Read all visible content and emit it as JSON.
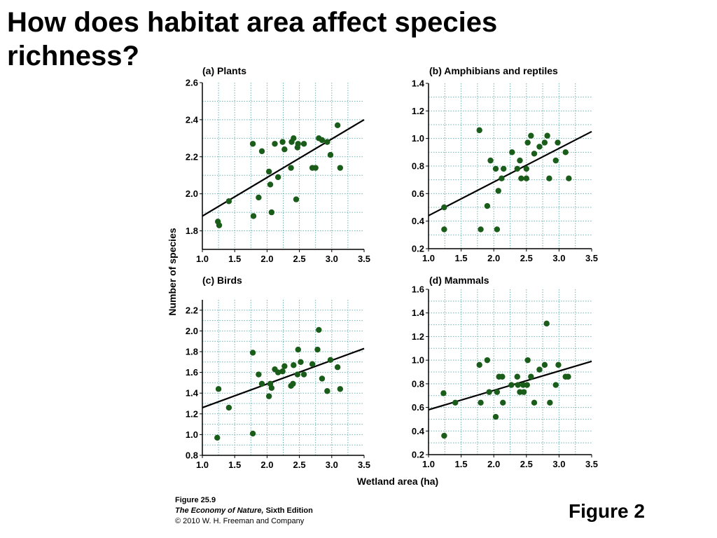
{
  "slide": {
    "title": "How does habitat area affect species richness?",
    "figure_label": "Figure 2"
  },
  "caption": {
    "figure_number": "Figure 25.9",
    "book_title": "The Economy of Nature,",
    "edition": " Sixth Edition",
    "copyright": "© 2010 W. H. Freeman and Company"
  },
  "shared_labels": {
    "ylabel": "Number of species",
    "xlabel": "Wetland area (ha)"
  },
  "colors": {
    "points": "#1a5c1a",
    "grid": "#6fb3b3",
    "regression": "#000000"
  },
  "chart_data": [
    {
      "id": "plants",
      "type": "scatter",
      "title": "(a) Plants",
      "xlim": [
        1.0,
        3.5
      ],
      "ylim": [
        1.7,
        2.6
      ],
      "xticks": [
        1.0,
        1.5,
        2.0,
        2.5,
        3.0,
        3.5
      ],
      "yticks": [
        1.8,
        2.0,
        2.2,
        2.4,
        2.6
      ],
      "tick_decimals": 1,
      "grid": true,
      "regression": [
        [
          1.0,
          1.88
        ],
        [
          3.5,
          2.4
        ]
      ],
      "points": [
        [
          1.24,
          1.85
        ],
        [
          1.26,
          1.83
        ],
        [
          1.41,
          1.96
        ],
        [
          1.79,
          1.88
        ],
        [
          1.78,
          2.27
        ],
        [
          1.87,
          1.98
        ],
        [
          1.92,
          2.23
        ],
        [
          2.03,
          2.12
        ],
        [
          2.05,
          2.05
        ],
        [
          2.07,
          1.9
        ],
        [
          2.12,
          2.27
        ],
        [
          2.17,
          2.09
        ],
        [
          2.24,
          2.28
        ],
        [
          2.27,
          2.24
        ],
        [
          2.37,
          2.14
        ],
        [
          2.38,
          2.28
        ],
        [
          2.41,
          2.3
        ],
        [
          2.45,
          1.97
        ],
        [
          2.47,
          2.25
        ],
        [
          2.48,
          2.27
        ],
        [
          2.57,
          2.27
        ],
        [
          2.7,
          2.14
        ],
        [
          2.75,
          2.14
        ],
        [
          2.8,
          2.3
        ],
        [
          2.85,
          2.29
        ],
        [
          2.93,
          2.28
        ],
        [
          2.98,
          2.21
        ],
        [
          3.09,
          2.37
        ],
        [
          3.13,
          2.14
        ]
      ]
    },
    {
      "id": "amphibians-reptiles",
      "type": "scatter",
      "title": "(b) Amphibians and reptiles",
      "xlim": [
        1.0,
        3.5
      ],
      "ylim": [
        0.2,
        1.4
      ],
      "xticks": [
        1.0,
        1.5,
        2.0,
        2.5,
        3.0,
        3.5
      ],
      "yticks": [
        0.2,
        0.4,
        0.6,
        0.8,
        1.0,
        1.2,
        1.4
      ],
      "tick_decimals": 1,
      "grid": true,
      "regression": [
        [
          1.0,
          0.44
        ],
        [
          3.5,
          1.05
        ]
      ],
      "points": [
        [
          1.24,
          0.5
        ],
        [
          1.24,
          0.34
        ],
        [
          1.78,
          1.06
        ],
        [
          1.8,
          0.34
        ],
        [
          1.9,
          0.51
        ],
        [
          1.95,
          0.84
        ],
        [
          2.03,
          0.78
        ],
        [
          2.05,
          0.34
        ],
        [
          2.07,
          0.62
        ],
        [
          2.12,
          0.71
        ],
        [
          2.15,
          0.78
        ],
        [
          2.28,
          0.9
        ],
        [
          2.36,
          0.78
        ],
        [
          2.4,
          0.84
        ],
        [
          2.42,
          0.71
        ],
        [
          2.5,
          0.78
        ],
        [
          2.5,
          0.71
        ],
        [
          2.52,
          0.97
        ],
        [
          2.57,
          1.02
        ],
        [
          2.62,
          0.89
        ],
        [
          2.7,
          0.94
        ],
        [
          2.78,
          0.97
        ],
        [
          2.82,
          1.02
        ],
        [
          2.85,
          0.71
        ],
        [
          2.95,
          0.84
        ],
        [
          2.98,
          0.97
        ],
        [
          3.1,
          0.9
        ],
        [
          3.15,
          0.71
        ]
      ]
    },
    {
      "id": "birds",
      "type": "scatter",
      "title": "(c) Birds",
      "xlim": [
        1.0,
        3.5
      ],
      "ylim": [
        0.8,
        2.3
      ],
      "xticks": [
        1.0,
        1.5,
        2.0,
        2.5,
        3.0,
        3.5
      ],
      "yticks": [
        0.8,
        1.0,
        1.2,
        1.4,
        1.6,
        1.8,
        2.0,
        2.2
      ],
      "tick_decimals": 1,
      "grid": true,
      "regression": [
        [
          1.0,
          1.26
        ],
        [
          3.5,
          1.83
        ]
      ],
      "points": [
        [
          1.23,
          0.97
        ],
        [
          1.25,
          1.44
        ],
        [
          1.41,
          1.26
        ],
        [
          1.78,
          1.01
        ],
        [
          1.78,
          1.79
        ],
        [
          1.87,
          1.58
        ],
        [
          1.92,
          1.49
        ],
        [
          2.03,
          1.37
        ],
        [
          2.05,
          1.49
        ],
        [
          2.07,
          1.45
        ],
        [
          2.12,
          1.63
        ],
        [
          2.17,
          1.6
        ],
        [
          2.24,
          1.61
        ],
        [
          2.27,
          1.66
        ],
        [
          2.37,
          1.47
        ],
        [
          2.4,
          1.49
        ],
        [
          2.41,
          1.67
        ],
        [
          2.47,
          1.58
        ],
        [
          2.48,
          1.82
        ],
        [
          2.52,
          1.7
        ],
        [
          2.57,
          1.58
        ],
        [
          2.7,
          1.68
        ],
        [
          2.78,
          1.82
        ],
        [
          2.8,
          2.01
        ],
        [
          2.85,
          1.54
        ],
        [
          2.93,
          1.42
        ],
        [
          2.98,
          1.72
        ],
        [
          3.09,
          1.65
        ],
        [
          3.13,
          1.44
        ]
      ]
    },
    {
      "id": "mammals",
      "type": "scatter",
      "title": "(d) Mammals",
      "xlim": [
        1.0,
        3.5
      ],
      "ylim": [
        0.2,
        1.6
      ],
      "xticks": [
        1.0,
        1.5,
        2.0,
        2.5,
        3.0,
        3.5
      ],
      "yticks": [
        0.2,
        0.4,
        0.6,
        0.8,
        1.0,
        1.2,
        1.4,
        1.6
      ],
      "tick_decimals": 1,
      "grid": true,
      "regression": [
        [
          1.0,
          0.58
        ],
        [
          3.5,
          0.99
        ]
      ],
      "points": [
        [
          1.23,
          0.72
        ],
        [
          1.24,
          0.36
        ],
        [
          1.41,
          0.64
        ],
        [
          1.78,
          0.96
        ],
        [
          1.8,
          0.64
        ],
        [
          1.9,
          1.0
        ],
        [
          1.93,
          0.73
        ],
        [
          2.03,
          0.52
        ],
        [
          2.05,
          0.73
        ],
        [
          2.08,
          0.86
        ],
        [
          2.13,
          0.86
        ],
        [
          2.14,
          0.64
        ],
        [
          2.27,
          0.79
        ],
        [
          2.36,
          0.86
        ],
        [
          2.37,
          0.79
        ],
        [
          2.4,
          0.73
        ],
        [
          2.45,
          0.79
        ],
        [
          2.46,
          0.73
        ],
        [
          2.51,
          0.79
        ],
        [
          2.52,
          1.0
        ],
        [
          2.57,
          0.86
        ],
        [
          2.62,
          0.64
        ],
        [
          2.7,
          0.92
        ],
        [
          2.78,
          0.96
        ],
        [
          2.81,
          1.31
        ],
        [
          2.86,
          0.64
        ],
        [
          2.95,
          0.79
        ],
        [
          2.99,
          0.96
        ],
        [
          3.1,
          0.86
        ],
        [
          3.14,
          0.86
        ]
      ]
    }
  ]
}
